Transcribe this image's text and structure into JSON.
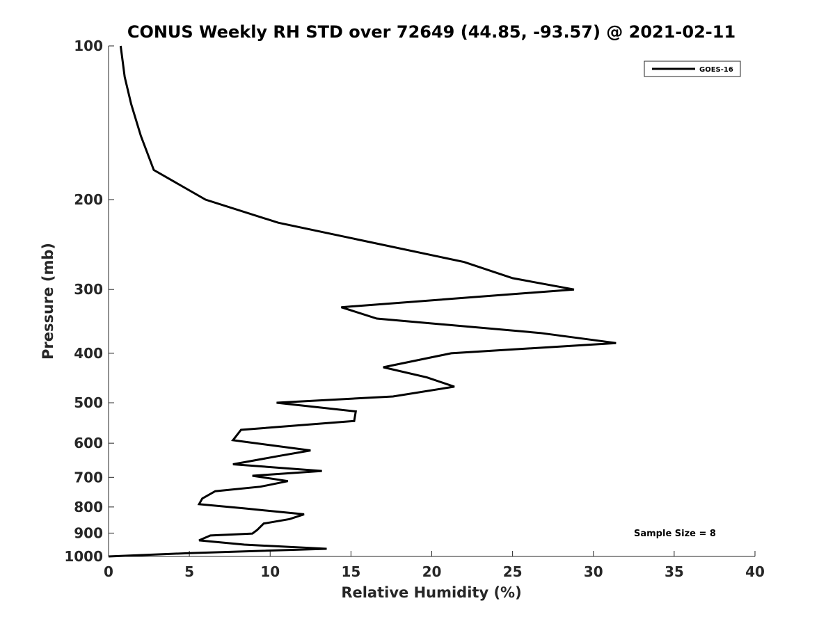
{
  "chart_data": {
    "type": "line",
    "title": "CONUS Weekly RH STD over 72649 (44.85, -93.57) @ 2021-02-11",
    "xlabel": "Relative Humidity (%)",
    "ylabel": "Pressure (mb)",
    "xlim": [
      0,
      40
    ],
    "ylim": [
      100,
      1000
    ],
    "yscale": "log",
    "y_reversed": true,
    "grid": false,
    "legend_position": "top-right",
    "x_ticks": [
      0,
      5,
      10,
      15,
      20,
      25,
      30,
      35,
      40
    ],
    "x_tick_labels": [
      "0",
      "5",
      "10",
      "15",
      "20",
      "25",
      "30",
      "35",
      "40"
    ],
    "y_ticks": [
      100,
      200,
      300,
      400,
      500,
      600,
      700,
      800,
      900,
      1000
    ],
    "y_tick_labels": [
      "100",
      "200",
      "300",
      "400",
      "500",
      "600",
      "700",
      "800",
      "900",
      "1000"
    ],
    "color": "#000000",
    "series": [
      {
        "name": "GOES-16",
        "x": [
          0.75,
          1.0,
          1.4,
          2.0,
          2.8,
          6.0,
          10.5,
          22.0,
          25.0,
          28.8,
          14.4,
          16.6,
          26.7,
          31.4,
          21.2,
          17.0,
          19.7,
          21.4,
          17.6,
          10.4,
          15.3,
          15.2,
          8.2,
          7.7,
          12.5,
          10.5,
          7.7,
          13.2,
          8.9,
          11.1,
          9.4,
          6.6,
          5.8,
          5.6,
          8.4,
          12.1,
          11.2,
          9.6,
          9.2,
          8.9,
          6.3,
          5.6,
          8.4,
          13.5,
          5.0,
          0.0
        ],
        "y": [
          100,
          115,
          130,
          150,
          175,
          200,
          222,
          265,
          285,
          300,
          325,
          342,
          365,
          382,
          400,
          426,
          446,
          465,
          486,
          500,
          520,
          543,
          565,
          592,
          620,
          636,
          660,
          680,
          695,
          712,
          730,
          745,
          770,
          790,
          805,
          827,
          845,
          862,
          887,
          902,
          910,
          930,
          948,
          966,
          985,
          1000
        ]
      }
    ],
    "annotations": [
      "Sample Size = 8"
    ]
  }
}
